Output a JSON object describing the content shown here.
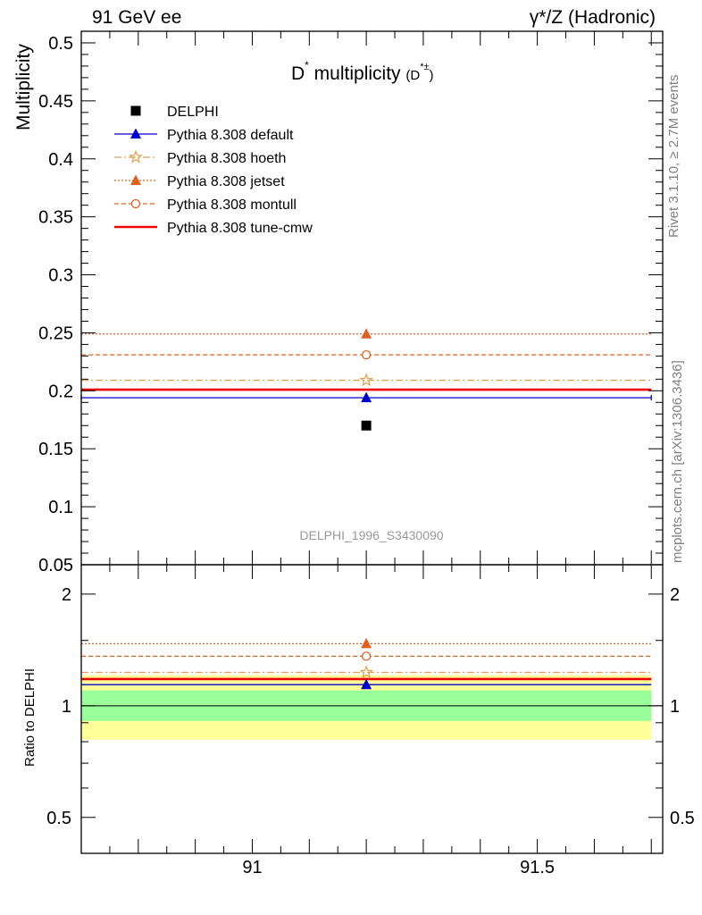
{
  "header": {
    "left": "91 GeV ee",
    "right": "γ*/Z (Hadronic)"
  },
  "side": {
    "rivet": "Rivet 3.1.10, ≥ 2.7M events",
    "mcplots": "mcplots.cern.ch [arXiv:1306.3436]"
  },
  "chart_data": {
    "type": "scatter",
    "title": "D* multiplicity (D*±)",
    "xlim": [
      90.7,
      91.72
    ],
    "xticks": [
      91,
      91.5
    ],
    "xtick_labels": [
      "91",
      "91.5"
    ],
    "x_bin": [
      90.7,
      91.7
    ],
    "x_center": 91.2,
    "annotation": "DELPHI_1996_S3430090",
    "main": {
      "ylabel": "Multiplicity",
      "ylim": [
        0.05,
        0.51
      ],
      "yticks": [
        0.05,
        0.1,
        0.15,
        0.2,
        0.25,
        0.3,
        0.35,
        0.4,
        0.45,
        0.5
      ],
      "ytick_labels": [
        "0.05",
        "0.1",
        "0.15",
        "0.2",
        "0.25",
        "0.3",
        "0.35",
        "0.4",
        "0.45",
        "0.5"
      ]
    },
    "ratio": {
      "ylabel": "Ratio to DELPHI",
      "scale": "log",
      "ylim": [
        0.4,
        2.4
      ],
      "yticks": [
        0.5,
        1,
        2
      ],
      "ytick_labels": [
        "0.5",
        "1",
        "2"
      ],
      "band_inner": [
        0.91,
        1.1
      ],
      "band_outer": [
        0.81,
        1.21
      ]
    },
    "legend_position": "top-left",
    "series": [
      {
        "name": "DELPHI",
        "value": 0.17,
        "ratio": 1.0,
        "color": "#000000",
        "marker": "square",
        "line": "none",
        "is_data": true
      },
      {
        "name": "Pythia 8.308 default",
        "value": 0.194,
        "ratio": 1.14,
        "color": "#0000cc",
        "marker": "triangle",
        "line": "solid"
      },
      {
        "name": "Pythia 8.308 hoeth",
        "value": 0.209,
        "ratio": 1.23,
        "color": "#e0a050",
        "marker": "star",
        "line": "dashdot"
      },
      {
        "name": "Pythia 8.308 jetset",
        "value": 0.249,
        "ratio": 1.47,
        "color": "#e06020",
        "marker": "triangle",
        "line": "dotted"
      },
      {
        "name": "Pythia 8.308 montull",
        "value": 0.231,
        "ratio": 1.36,
        "color": "#e06020",
        "marker": "circle-open",
        "line": "dashed"
      },
      {
        "name": "Pythia 8.308 tune-cmw",
        "value": 0.201,
        "ratio": 1.18,
        "color": "#ee0000",
        "marker": "none",
        "line": "thick"
      }
    ]
  }
}
